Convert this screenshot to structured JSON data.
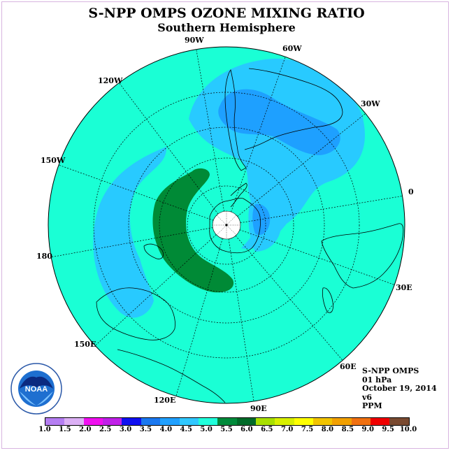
{
  "title": "S-NPP OMPS OZONE MIXING RATIO",
  "subtitle": "Southern Hemisphere",
  "longitude_labels": {
    "lon_90w": "90W",
    "lon_60w": "60W",
    "lon_120w": "120W",
    "lon_30w": "30W",
    "lon_150w": "150W",
    "lon_0": "0",
    "lon_180": "180",
    "lon_30e": "30E",
    "lon_150e": "150E",
    "lon_60e": "60E",
    "lon_120e": "120E",
    "lon_90e": "90E"
  },
  "info": {
    "instrument": "S-NPP OMPS",
    "level": "01 hPa",
    "date": "October 19, 2014",
    "version": "v6",
    "units": "PPM"
  },
  "logo": {
    "text": "NOAA",
    "icon": "noaa-logo-icon"
  },
  "colorbar": {
    "colors": [
      "#b57ef2",
      "#dcb0f5",
      "#f010f0",
      "#c020e8",
      "#1010f0",
      "#1a78f0",
      "#20a0ff",
      "#30c8ff",
      "#20ffdc",
      "#008a3a",
      "#006a28",
      "#a8e000",
      "#d8f000",
      "#ffff00",
      "#f2c400",
      "#f2a000",
      "#f07010",
      "#f00000",
      "#7a4a30"
    ],
    "ticks": [
      "1.0",
      "1.5",
      "2.0",
      "2.5",
      "3.0",
      "3.5",
      "4.0",
      "4.5",
      "5.0",
      "5.5",
      "6.0",
      "6.5",
      "7.0",
      "7.5",
      "8.0",
      "8.5",
      "9.0",
      "9.5",
      "10.0"
    ]
  },
  "field_colors": {
    "background": "#1affd5",
    "band_light": "#28caff",
    "band_mid": "#1ea0ff",
    "band_green": "#008a36"
  }
}
